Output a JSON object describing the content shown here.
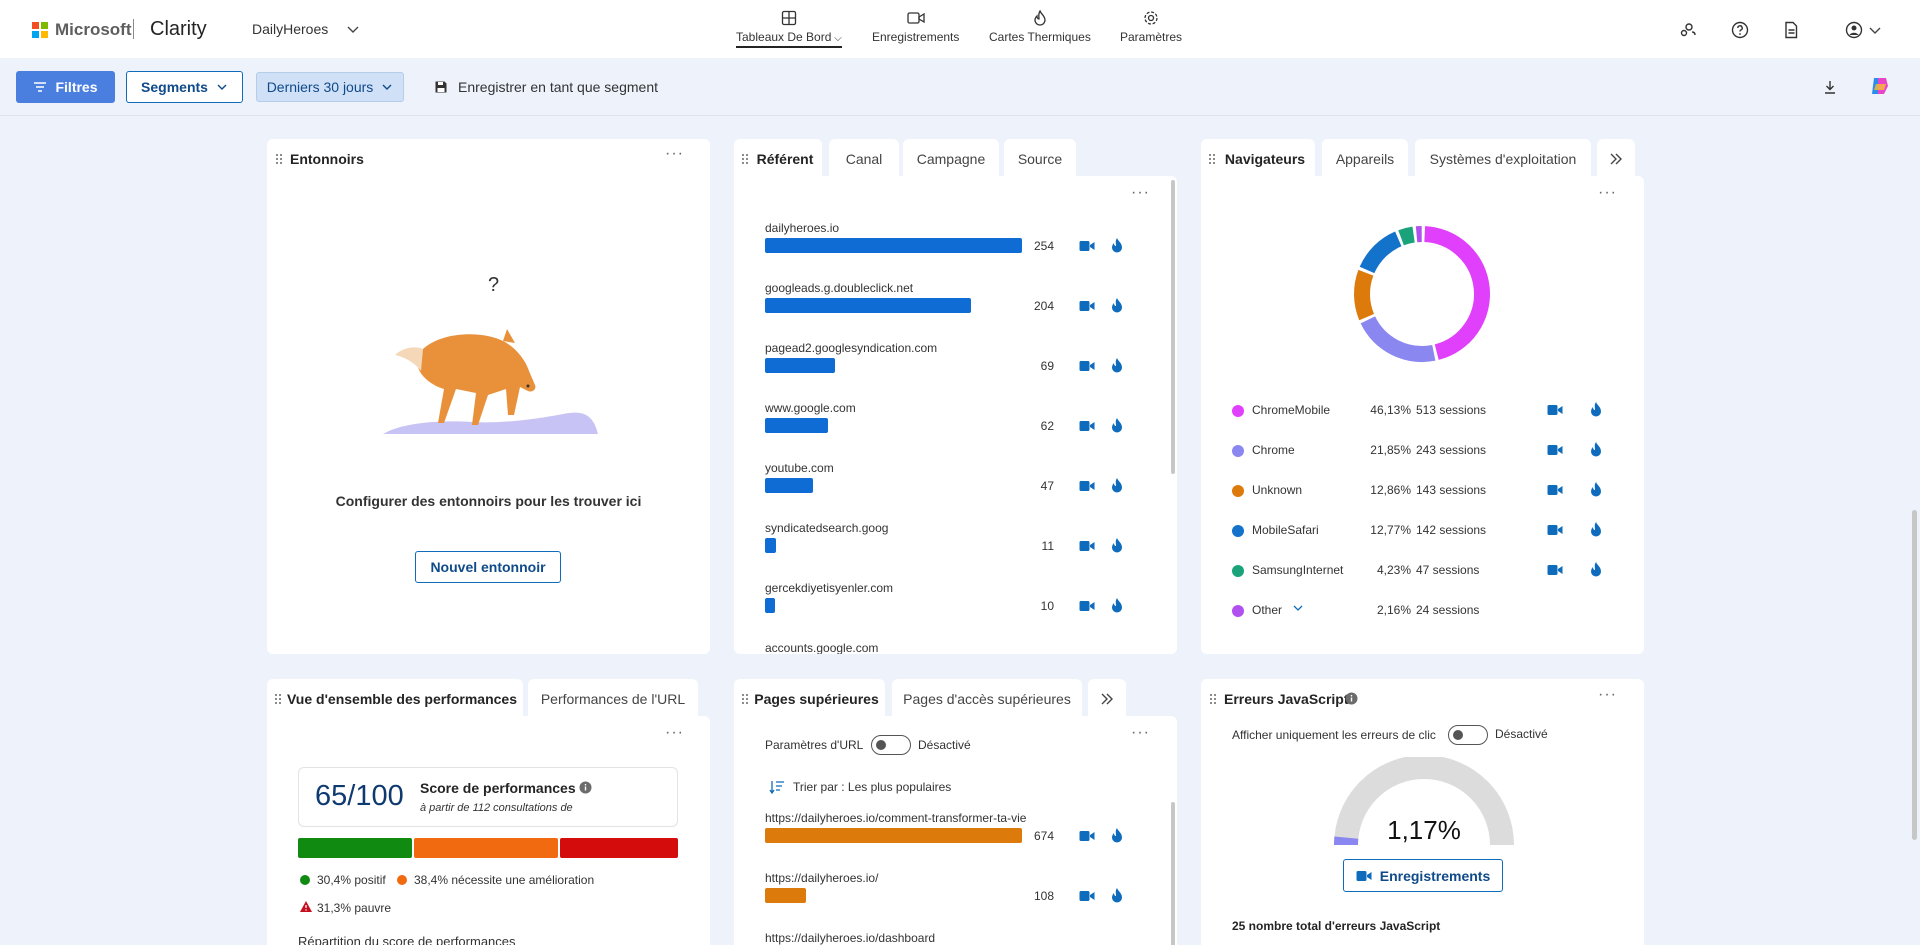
{
  "header": {
    "brand_ms": "Microsoft",
    "brand_app": "Clarity",
    "project": "DailyHeroes",
    "nav": [
      {
        "label": "Tableaux De Bord",
        "icon": "dashboard-icon",
        "active": true
      },
      {
        "label": "Enregistrements",
        "icon": "recordings-icon"
      },
      {
        "label": "Cartes Thermiques",
        "icon": "heatmap-icon"
      },
      {
        "label": "Paramètres",
        "icon": "settings-icon"
      }
    ]
  },
  "toolbar": {
    "filters_label": "Filtres",
    "segments_label": "Segments",
    "period_label": "Derniers 30 jours",
    "save_segment_label": "Enregistrer en tant que segment"
  },
  "funnels": {
    "title": "Entonnoirs",
    "question_mark": "?",
    "empty_text": "Configurer des entonnoirs pour les trouver ici",
    "new_button": "Nouvel entonnoir"
  },
  "referrer": {
    "tabs": [
      "Référent",
      "Canal",
      "Campagne",
      "Source"
    ],
    "items": [
      {
        "label": "dailyheroes.io",
        "value": 254
      },
      {
        "label": "googleads.g.doubleclick.net",
        "value": 204
      },
      {
        "label": "pagead2.googlesyndication.com",
        "value": 69
      },
      {
        "label": "www.google.com",
        "value": 62
      },
      {
        "label": "youtube.com",
        "value": 47
      },
      {
        "label": "syndicatedsearch.goog",
        "value": 11
      },
      {
        "label": "gercekdiyetisyenler.com",
        "value": 10
      },
      {
        "label": "accounts.google.com",
        "value": null
      }
    ],
    "bar_color": "#0f6cd4"
  },
  "browsers": {
    "tabs": [
      "Navigateurs",
      "Appareils",
      "Systèmes d'exploitation"
    ],
    "items": [
      {
        "name": "ChromeMobile",
        "pct": "46,13%",
        "sessions": "513 sessions",
        "share": 46.13,
        "color": "#e040fb"
      },
      {
        "name": "Chrome",
        "pct": "21,85%",
        "sessions": "243 sessions",
        "share": 21.85,
        "color": "#8b87f0"
      },
      {
        "name": "Unknown",
        "pct": "12,86%",
        "sessions": "143 sessions",
        "share": 12.86,
        "color": "#dd7a0c"
      },
      {
        "name": "MobileSafari",
        "pct": "12,77%",
        "sessions": "142 sessions",
        "share": 12.77,
        "color": "#1372c9"
      },
      {
        "name": "SamsungInternet",
        "pct": "4,23%",
        "sessions": "47 sessions",
        "share": 4.23,
        "color": "#1aa37a"
      },
      {
        "name": "Other",
        "pct": "2,16%",
        "sessions": "24 sessions",
        "share": 2.16,
        "color": "#b050ef"
      }
    ]
  },
  "performance": {
    "tabs": [
      "Vue d'ensemble des performances",
      "Performances de l'URL"
    ],
    "score": "65/100",
    "score_label": "Score de performances",
    "score_sub": "à partir de 112 consultations de",
    "good": "30,4% positif",
    "improve": "38,4% nécessite une amélioration",
    "poor": "31,3% pauvre",
    "good_share": 30.4,
    "improve_share": 38.4,
    "poor_share": 31.3,
    "breakdown_label": "Répartition du score de performances"
  },
  "pages": {
    "tabs": [
      "Pages supérieures",
      "Pages d'accès supérieures"
    ],
    "url_params_label": "Paramètres d'URL",
    "url_params_state": "Désactivé",
    "sort_label": "Trier par : Les plus populaires",
    "items": [
      {
        "label": "https://dailyheroes.io/comment-transformer-ta-vie",
        "value": 674
      },
      {
        "label": "https://dailyheroes.io/",
        "value": 108
      },
      {
        "label": "https://dailyheroes.io/dashboard",
        "value": null
      }
    ],
    "bar_color": "#dd7a0c"
  },
  "js_errors": {
    "title": "Erreurs JavaScript",
    "click_only_label": "Afficher uniquement les erreurs de clic",
    "click_only_state": "Désactivé",
    "gauge_value": "1,17%",
    "gauge_fraction": 0.0117,
    "recordings_button": "Enregistrements",
    "total_label": "25 nombre total d'erreurs JavaScript"
  }
}
